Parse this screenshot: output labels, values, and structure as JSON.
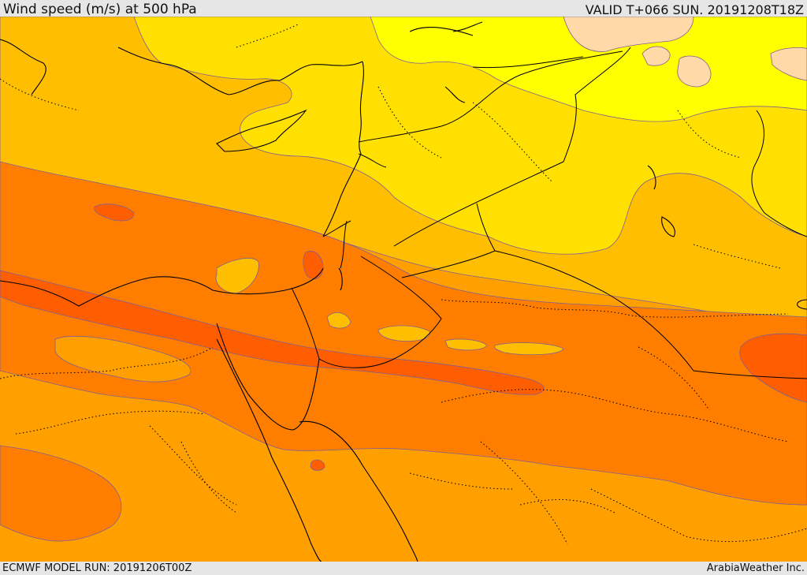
{
  "header": {
    "title": "Wind speed (m/s) at 500 hPa",
    "valid": "VALID T+066 SUN. 20191208T18Z"
  },
  "footer": {
    "model_run": "ECMWF MODEL RUN: 20191206T00Z",
    "credit": "ArabiaWeather Inc."
  },
  "palette": {
    "background": "#e6e6e6",
    "band_1": "#ffd9a8",
    "band_2": "#ffff00",
    "band_3": "#ffe000",
    "band_4": "#ffbf00",
    "band_5": "#ff9f00",
    "band_6": "#ff7e00",
    "band_7": "#ff5e00"
  }
}
